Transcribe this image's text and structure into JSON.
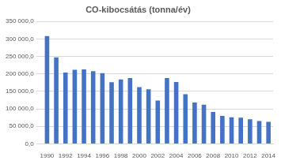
{
  "chart_data": {
    "type": "bar",
    "title": "CO-kibocsátás (tonna/év)",
    "categories": [
      "1990",
      null,
      "1992",
      null,
      "1994",
      null,
      "1996",
      null,
      "1998",
      null,
      "2000",
      null,
      "2002",
      null,
      "2004",
      null,
      "2006",
      null,
      "2008",
      null,
      "2010",
      null,
      "2012",
      null,
      "2014"
    ],
    "values": [
      308000,
      247000,
      204000,
      212000,
      213000,
      208000,
      202000,
      176000,
      184000,
      188000,
      162000,
      156000,
      124000,
      188000,
      177000,
      142000,
      118000,
      112000,
      91000,
      80000,
      76000,
      75000,
      70000,
      65000,
      63000
    ],
    "color": "#4472c4",
    "ylim": [
      0,
      350000
    ],
    "yticks": [
      {
        "value": 0,
        "label": "0,0"
      },
      {
        "value": 50000,
        "label": "50 000,0"
      },
      {
        "value": 100000,
        "label": "100 000,0"
      },
      {
        "value": 150000,
        "label": "150 000,0"
      },
      {
        "value": 200000,
        "label": "200 000,0"
      },
      {
        "value": 250000,
        "label": "250 000,0"
      },
      {
        "value": 300000,
        "label": "300 000,0"
      },
      {
        "value": 350000,
        "label": "350 000,0"
      }
    ],
    "grid": true
  }
}
